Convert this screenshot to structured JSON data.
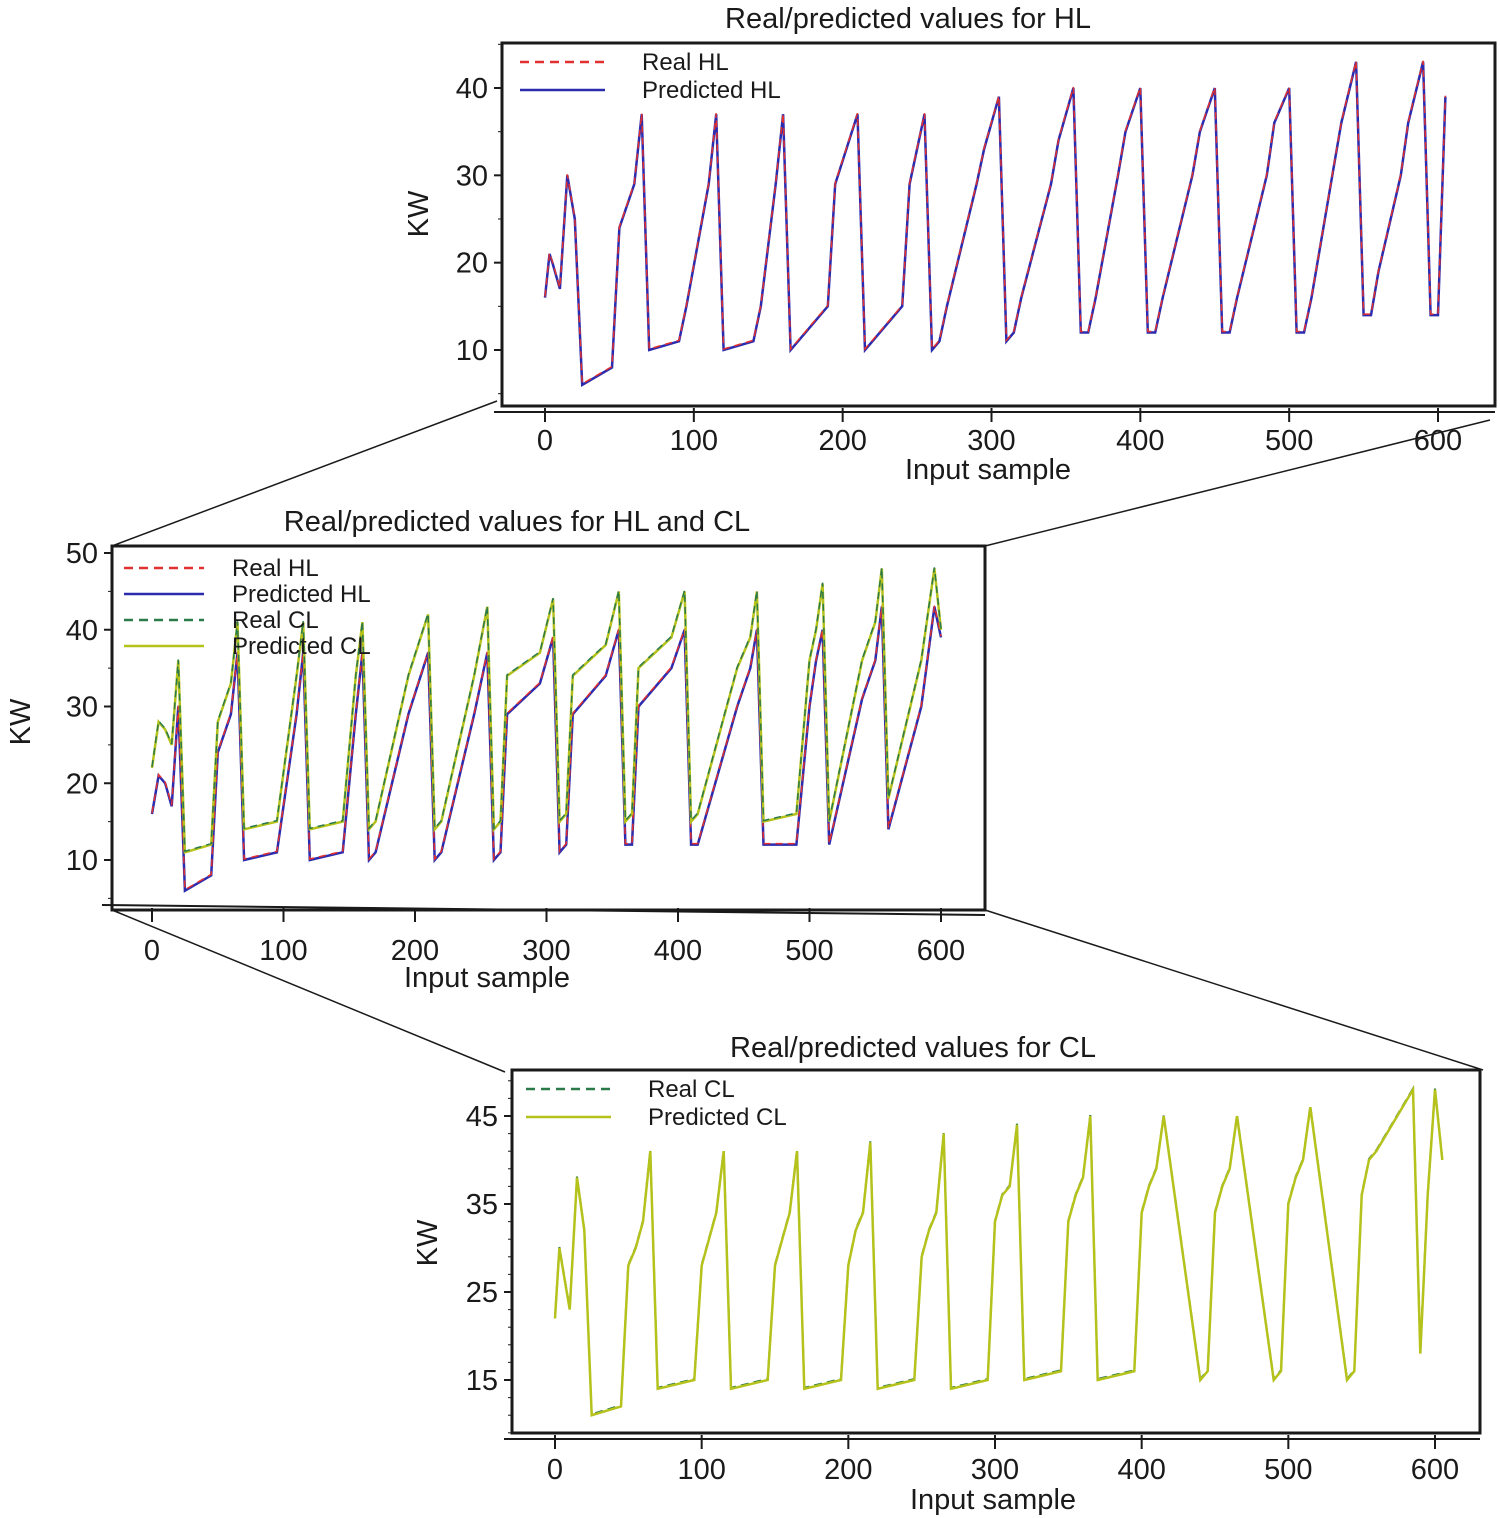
{
  "chart_data": [
    {
      "type": "line",
      "title": "Real/predicted values for HL",
      "xlabel": "Input sample",
      "ylabel": "KW",
      "xlim": [
        -30,
        640
      ],
      "ylim": [
        4,
        45
      ],
      "xticks": [
        0,
        100,
        200,
        300,
        400,
        500,
        600
      ],
      "yticks": [
        10,
        20,
        30,
        40
      ],
      "legend": "top-left",
      "grid": false,
      "series": [
        {
          "name": "Real HL",
          "style": "dashed",
          "color": "#e03030"
        },
        {
          "name": "Predicted HL",
          "style": "solid",
          "color": "#2b2bb0"
        }
      ],
      "x": [
        0,
        3,
        5,
        10,
        15,
        20,
        25,
        45,
        50,
        60,
        65,
        70,
        90,
        95,
        110,
        115,
        120,
        140,
        145,
        155,
        160,
        165,
        170,
        190,
        195,
        210,
        215,
        220,
        240,
        245,
        255,
        260,
        265,
        270,
        290,
        295,
        305,
        310,
        315,
        320,
        340,
        345,
        355,
        360,
        365,
        370,
        385,
        390,
        400,
        405,
        410,
        415,
        435,
        440,
        450,
        455,
        460,
        465,
        485,
        490,
        500,
        505,
        510,
        515,
        530,
        535,
        545,
        550,
        555,
        560,
        575,
        580,
        590,
        595,
        600,
        605
      ],
      "values": [
        16,
        21,
        20,
        17,
        30,
        25,
        6,
        8,
        24,
        29,
        37,
        10,
        11,
        15,
        29,
        37,
        10,
        11,
        15,
        29,
        37,
        10,
        11,
        15,
        29,
        37,
        10,
        11,
        15,
        29,
        37,
        10,
        11,
        15,
        29,
        33,
        39,
        11,
        12,
        16,
        29,
        34,
        40,
        12,
        12,
        16,
        30,
        35,
        40,
        12,
        12,
        16,
        30,
        35,
        40,
        12,
        12,
        16,
        30,
        36,
        40,
        12,
        12,
        16,
        31,
        36,
        43,
        14,
        14,
        19,
        30,
        36,
        43,
        14,
        14,
        39
      ]
    },
    {
      "type": "line",
      "title": "Real/predicted values for HL and CL",
      "xlabel": "Input sample",
      "ylabel": "KW",
      "xlim": [
        -30,
        640
      ],
      "ylim": [
        4,
        50
      ],
      "xticks": [
        0,
        100,
        200,
        300,
        400,
        500,
        600
      ],
      "yticks": [
        10,
        20,
        30,
        40,
        50
      ],
      "legend": "top-left",
      "grid": false,
      "series": [
        {
          "name": "Real HL",
          "style": "dashed",
          "color": "#e03030"
        },
        {
          "name": "Predicted HL",
          "style": "solid",
          "color": "#2b2bb0"
        },
        {
          "name": "Real CL",
          "style": "dashed",
          "color": "#2a7a4a"
        },
        {
          "name": "Predicted CL",
          "style": "solid",
          "color": "#b5c21c"
        }
      ],
      "x": [
        0,
        5,
        10,
        15,
        20,
        25,
        45,
        50,
        60,
        65,
        70,
        95,
        110,
        115,
        120,
        145,
        155,
        160,
        165,
        170,
        195,
        210,
        215,
        220,
        245,
        255,
        260,
        265,
        270,
        295,
        305,
        310,
        315,
        320,
        345,
        355,
        360,
        365,
        370,
        395,
        405,
        410,
        415,
        445,
        455,
        460,
        465,
        490,
        500,
        505,
        510,
        515,
        540,
        550,
        555,
        560,
        585,
        595,
        600
      ],
      "hl_values": [
        16,
        21,
        20,
        17,
        30,
        6,
        8,
        24,
        29,
        37,
        10,
        11,
        29,
        37,
        10,
        11,
        29,
        37,
        10,
        11,
        29,
        37,
        10,
        11,
        29,
        37,
        10,
        11,
        29,
        33,
        39,
        11,
        12,
        29,
        34,
        40,
        12,
        12,
        30,
        35,
        40,
        12,
        12,
        30,
        35,
        40,
        12,
        12,
        30,
        36,
        40,
        12,
        31,
        36,
        43,
        14,
        30,
        43,
        39
      ],
      "cl_values": [
        22,
        28,
        27,
        25,
        36,
        11,
        12,
        28,
        33,
        41,
        14,
        15,
        34,
        41,
        14,
        15,
        34,
        41,
        14,
        15,
        34,
        42,
        14,
        15,
        34,
        43,
        14,
        15,
        34,
        37,
        44,
        15,
        16,
        34,
        38,
        45,
        15,
        16,
        35,
        39,
        45,
        15,
        16,
        35,
        39,
        45,
        15,
        16,
        36,
        40,
        46,
        15,
        36,
        41,
        48,
        18,
        36,
        48,
        40
      ]
    },
    {
      "type": "line",
      "title": "Real/predicted values for CL",
      "xlabel": "Input sample",
      "ylabel": "KW",
      "xlim": [
        -30,
        640
      ],
      "ylim": [
        9,
        50
      ],
      "xticks": [
        0,
        100,
        200,
        300,
        400,
        500,
        600
      ],
      "yticks": [
        15,
        25,
        35,
        45
      ],
      "legend": "top-left",
      "grid": false,
      "series": [
        {
          "name": "Real CL",
          "style": "dashed",
          "color": "#2a7a4a"
        },
        {
          "name": "Predicted CL",
          "style": "solid",
          "color": "#b5c21c"
        }
      ],
      "x": [
        0,
        3,
        5,
        10,
        15,
        20,
        25,
        45,
        50,
        55,
        60,
        65,
        70,
        95,
        100,
        105,
        110,
        115,
        120,
        145,
        150,
        155,
        160,
        165,
        170,
        195,
        200,
        205,
        210,
        215,
        220,
        245,
        250,
        255,
        260,
        265,
        270,
        295,
        300,
        305,
        310,
        315,
        320,
        345,
        350,
        355,
        360,
        365,
        370,
        395,
        400,
        405,
        410,
        415,
        440,
        445,
        450,
        455,
        460,
        465,
        490,
        495,
        500,
        505,
        510,
        515,
        540,
        545,
        550,
        555,
        560,
        585,
        590,
        595,
        600,
        605
      ],
      "values": [
        22,
        30,
        28,
        23,
        38,
        32,
        11,
        12,
        28,
        30,
        33,
        41,
        14,
        15,
        28,
        31,
        34,
        41,
        14,
        15,
        28,
        31,
        34,
        41,
        14,
        15,
        28,
        32,
        34,
        42,
        14,
        15,
        29,
        32,
        34,
        43,
        14,
        15,
        33,
        36,
        37,
        44,
        15,
        16,
        33,
        36,
        38,
        45,
        15,
        16,
        34,
        37,
        39,
        45,
        15,
        16,
        34,
        37,
        39,
        45,
        15,
        16,
        35,
        38,
        40,
        46,
        15,
        16,
        36,
        40,
        41,
        48,
        18,
        36,
        48,
        40
      ]
    }
  ]
}
